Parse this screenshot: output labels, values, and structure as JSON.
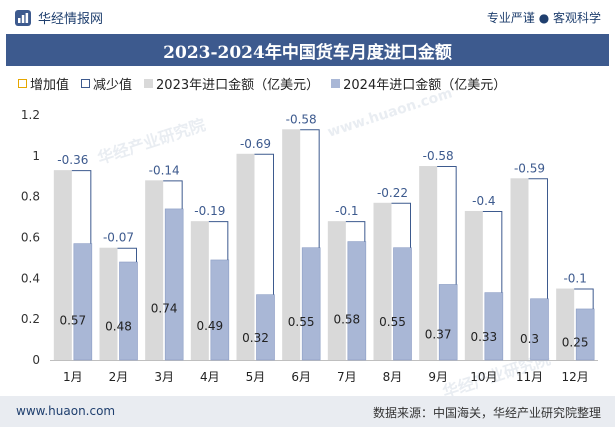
{
  "header": {
    "brand_name": "华经情报网",
    "slogan": "专业严谨 ● 客观科学"
  },
  "watermarks": [
    "华经产业研究院",
    "www.huaon.com",
    "华经产业研究院"
  ],
  "colors": {
    "bar_2023": "#d9d9d9",
    "bar_2024": "#a9b7d6",
    "bar_2024_edge": "#8a9cc4",
    "connector": "#3d5a8e",
    "title_bg": "#3d5a8e",
    "brand": "#1f3f6e"
  },
  "chart_data": {
    "type": "bar",
    "title": "2023-2024年中国货车月度进口金额",
    "categories": [
      "1月",
      "2月",
      "3月",
      "4月",
      "5月",
      "6月",
      "7月",
      "8月",
      "9月",
      "10月",
      "11月",
      "12月"
    ],
    "series": [
      {
        "name": "2023年进口金额（亿美元）",
        "values": [
          0.93,
          0.55,
          0.88,
          0.68,
          1.01,
          1.13,
          0.68,
          0.77,
          0.95,
          0.73,
          0.89,
          0.35
        ]
      },
      {
        "name": "2024年进口金额（亿美元）",
        "values": [
          0.57,
          0.48,
          0.74,
          0.49,
          0.32,
          0.55,
          0.58,
          0.55,
          0.37,
          0.33,
          0.3,
          0.25
        ]
      }
    ],
    "change_labels": [
      "-0.36",
      "-0.07",
      "-0.14",
      "-0.19",
      "-0.69",
      "-0.58",
      "-0.1",
      "-0.22",
      "-0.58",
      "-0.4",
      "-0.59",
      "-0.1"
    ],
    "value_labels": [
      "0.57",
      "0.48",
      "0.74",
      "0.49",
      "0.32",
      "0.55",
      "0.58",
      "0.55",
      "0.37",
      "0.33",
      "0.3",
      "0.25"
    ],
    "legend": [
      "增加值",
      "减少值",
      "2023年进口金额（亿美元）",
      "2024年进口金额（亿美元）"
    ],
    "yticks": [
      "0",
      "0.2",
      "0.4",
      "0.6",
      "0.8",
      "1",
      "1.2"
    ],
    "ylim": [
      0,
      1.2
    ],
    "grid": false,
    "legend_position": "top-left"
  },
  "footer": {
    "website": "www.huaon.com",
    "source": "数据来源：中国海关，华经产业研究院整理"
  }
}
